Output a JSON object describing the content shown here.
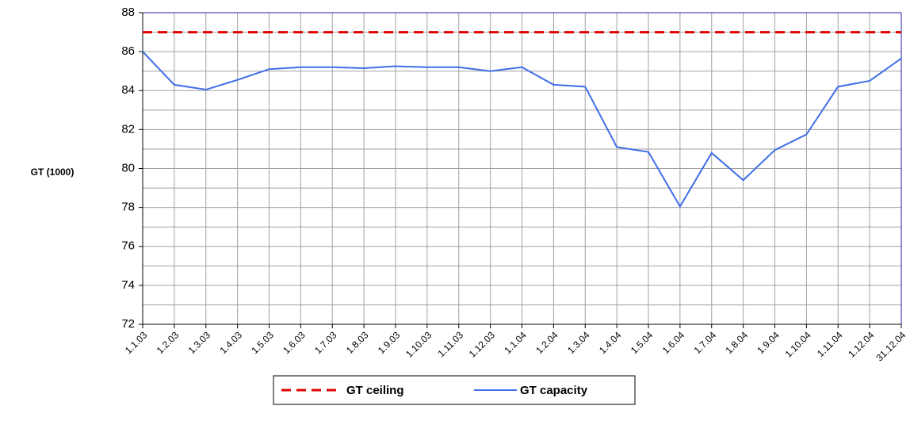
{
  "chart_data": {
    "type": "line",
    "y_label": "GT (1000)",
    "categories": [
      "1.1.03",
      "1.2.03",
      "1.3.03",
      "1.4.03",
      "1.5.03",
      "1.6.03",
      "1.7.03",
      "1.8.03",
      "1.9.03",
      "1.10.03",
      "1.11.03",
      "1.12.03",
      "1.1.04",
      "1.2.04",
      "1.3.04",
      "1.4.04",
      "1.5.04",
      "1.6.04",
      "1.7.04",
      "1.8.04",
      "1.9.04",
      "1.10.04",
      "1.11.04",
      "1.12.04",
      "31.12.04"
    ],
    "series": [
      {
        "name": "GT ceiling",
        "color": "#e00000",
        "dashed": true,
        "values": [
          87,
          87,
          87,
          87,
          87,
          87,
          87,
          87,
          87,
          87,
          87,
          87,
          87,
          87,
          87,
          87,
          87,
          87,
          87,
          87,
          87,
          87,
          87,
          87,
          87
        ]
      },
      {
        "name": "GT capacity",
        "color": "#3f6fe8",
        "dashed": false,
        "values": [
          86.0,
          84.3,
          84.05,
          84.55,
          85.1,
          85.2,
          85.2,
          85.15,
          85.25,
          85.2,
          85.2,
          85.0,
          85.2,
          84.3,
          84.2,
          81.1,
          80.85,
          78.05,
          80.8,
          79.4,
          80.95,
          81.75,
          84.2,
          84.5,
          85.65
        ]
      }
    ],
    "ylim": [
      72,
      88
    ],
    "yticks": [
      72,
      74,
      76,
      78,
      80,
      82,
      84,
      86,
      88
    ],
    "y_minor_ticks": [
      73,
      75,
      77,
      79,
      81,
      83,
      85,
      87
    ],
    "grid": true,
    "legend": "bottom"
  }
}
